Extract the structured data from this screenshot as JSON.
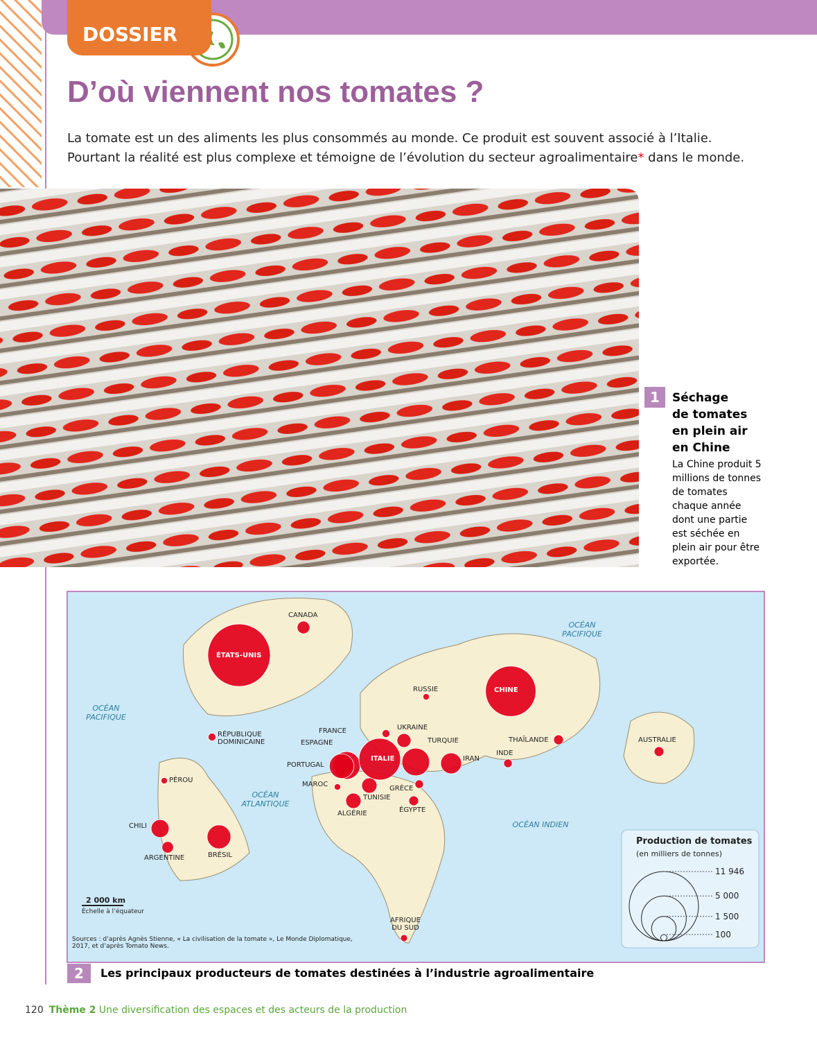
{
  "header": {
    "tab": "DOSSIER",
    "title": "D’où viennent nos tomates ?"
  },
  "intro": {
    "text": "La tomate est un des aliments les plus consommés au monde. Ce produit est souvent associé à l’Italie. Pourtant la réalité est plus complexe et témoigne de l’évolution du secteur agroalimentaire",
    "asterisk": "*",
    "end": " dans le monde."
  },
  "doc1": {
    "number": "1",
    "title": "Séchage de tomates en plein air en Chine",
    "text": "La Chine produit 5 millions de tonnes de tomates chaque année dont une partie est séchée en plein air pour être exportée."
  },
  "doc2": {
    "number": "2",
    "caption": "Les principaux producteurs de tomates destinées à l’industrie agroalimentaire",
    "oceans": [
      "OCÉAN PACIFIQUE",
      "OCÉAN PACIFIQUE",
      "OCÉAN ATLANTIQUE",
      "OCÉAN INDIEN"
    ],
    "producers": [
      {
        "name": "ÉTATS-UNIS",
        "value": 9700
      },
      {
        "name": "CANADA",
        "value": 400
      },
      {
        "name": "CHINE",
        "value": 6300
      },
      {
        "name": "RUSSIE",
        "value": 100
      },
      {
        "name": "RÉPUBLIQUE DOMINICAINE",
        "value": 150
      },
      {
        "name": "PÉROU",
        "value": 100
      },
      {
        "name": "CHILI",
        "value": 800
      },
      {
        "name": "ARGENTINE",
        "value": 330
      },
      {
        "name": "BRÉSIL",
        "value": 1400
      },
      {
        "name": "FRANCE",
        "value": 150
      },
      {
        "name": "ESPAGNE",
        "value": 1900
      },
      {
        "name": "PORTUGAL",
        "value": 1500
      },
      {
        "name": "ITALIE",
        "value": 4300
      },
      {
        "name": "UKRAINE",
        "value": 480
      },
      {
        "name": "TURQUIE",
        "value": 1900
      },
      {
        "name": "IRAN",
        "value": 1080
      },
      {
        "name": "MAROC",
        "value": 100
      },
      {
        "name": "GRÈCE",
        "value": 180
      },
      {
        "name": "TUNISIE",
        "value": 580
      },
      {
        "name": "ALGÉRIE",
        "value": 580
      },
      {
        "name": "ÉGYPTE",
        "value": 235
      },
      {
        "name": "INDE",
        "value": 180
      },
      {
        "name": "THAÏLANDE",
        "value": 235
      },
      {
        "name": "AUSTRALIE",
        "value": 235
      },
      {
        "name": "AFRIQUE DU SUD",
        "value": 120
      }
    ],
    "legend": {
      "title": "Production de tomates",
      "subtitle": "(en milliers de tonnes)",
      "values": [
        {
          "value": 11946,
          "label": "11 946"
        },
        {
          "value": 5000,
          "label": "5 000"
        },
        {
          "value": 1500,
          "label": "1 500"
        },
        100
      ]
    },
    "scale": {
      "label": "2 000 km",
      "note": "Échelle à l’équateur"
    },
    "sources": "Sources : d’après Agnès Stienne, « La civilisation de la tomate », Le Monde Diplomatique, 2017, et d’après Tomato News."
  },
  "footer": {
    "page": "120",
    "theme": "Thème 2",
    "subtitle": "Une diversification des espaces et des acteurs de la production"
  }
}
